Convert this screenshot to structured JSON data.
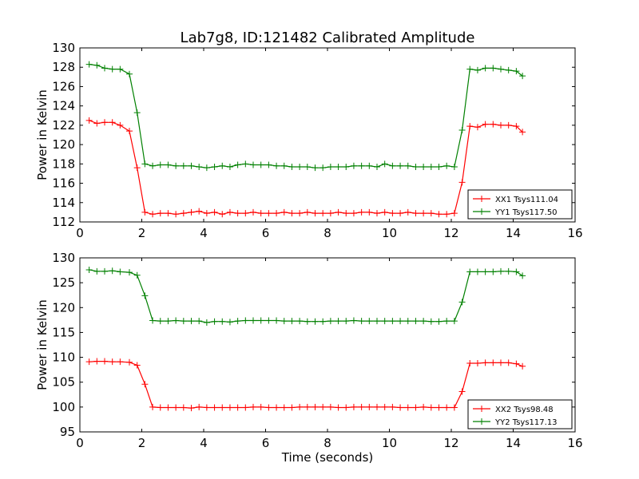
{
  "figure": {
    "title": "Lab7g8, ID:121482 Calibrated Amplitude"
  },
  "chart_data": [
    {
      "type": "line",
      "title": "Lab7g8, ID:121482 Calibrated Amplitude",
      "xlabel": "",
      "ylabel": "Power in Kelvin",
      "xlim": [
        0,
        16
      ],
      "ylim": [
        112,
        130
      ],
      "xticks": [
        "0",
        "2",
        "4",
        "6",
        "8",
        "10",
        "12",
        "14",
        "16"
      ],
      "yticks": [
        "112",
        "114",
        "116",
        "118",
        "120",
        "122",
        "124",
        "126",
        "128",
        "130"
      ],
      "grid": false,
      "legend_position": "lower-right",
      "x": [
        0.3,
        0.55,
        0.8,
        1.05,
        1.3,
        1.6,
        1.85,
        2.1,
        2.35,
        2.6,
        2.85,
        3.1,
        3.35,
        3.6,
        3.85,
        4.1,
        4.35,
        4.6,
        4.85,
        5.1,
        5.35,
        5.6,
        5.85,
        6.1,
        6.35,
        6.6,
        6.85,
        7.1,
        7.35,
        7.6,
        7.85,
        8.1,
        8.35,
        8.6,
        8.85,
        9.1,
        9.35,
        9.6,
        9.85,
        10.1,
        10.35,
        10.6,
        10.85,
        11.1,
        11.35,
        11.6,
        11.85,
        12.1,
        12.35,
        12.6,
        12.85,
        13.1,
        13.35,
        13.6,
        13.85,
        14.1,
        14.3
      ],
      "series": [
        {
          "name": "XX1 Tsys111.04",
          "color": "#ff0000",
          "values": [
            122.5,
            122.2,
            122.3,
            122.3,
            122.0,
            121.4,
            117.6,
            113.0,
            112.8,
            112.9,
            112.9,
            112.8,
            112.9,
            113.0,
            113.1,
            112.9,
            113.0,
            112.8,
            113.0,
            112.9,
            112.9,
            113.0,
            112.9,
            112.9,
            112.9,
            113.0,
            112.9,
            112.9,
            113.0,
            112.9,
            112.9,
            112.9,
            113.0,
            112.9,
            112.9,
            113.0,
            113.0,
            112.9,
            113.0,
            112.9,
            112.9,
            113.0,
            112.9,
            112.9,
            112.9,
            112.8,
            112.8,
            112.9,
            116.1,
            121.9,
            121.8,
            122.1,
            122.1,
            122.0,
            122.0,
            121.9,
            121.3
          ]
        },
        {
          "name": "YY1 Tsys117.50",
          "color": "#008000",
          "values": [
            128.3,
            128.2,
            127.9,
            127.8,
            127.8,
            127.3,
            123.3,
            118.0,
            117.8,
            117.9,
            117.9,
            117.8,
            117.8,
            117.8,
            117.7,
            117.6,
            117.7,
            117.8,
            117.7,
            117.9,
            118.0,
            117.9,
            117.9,
            117.9,
            117.8,
            117.8,
            117.7,
            117.7,
            117.7,
            117.6,
            117.6,
            117.7,
            117.7,
            117.7,
            117.8,
            117.8,
            117.8,
            117.7,
            118.0,
            117.8,
            117.8,
            117.8,
            117.7,
            117.7,
            117.7,
            117.7,
            117.8,
            117.7,
            121.5,
            127.8,
            127.7,
            127.9,
            127.9,
            127.8,
            127.7,
            127.6,
            127.1
          ]
        }
      ]
    },
    {
      "type": "line",
      "title": "",
      "xlabel": "Time (seconds)",
      "ylabel": "Power in Kelvin",
      "xlim": [
        0,
        16
      ],
      "ylim": [
        95,
        130
      ],
      "xticks": [
        "0",
        "2",
        "4",
        "6",
        "8",
        "10",
        "12",
        "14",
        "16"
      ],
      "yticks": [
        "95",
        "100",
        "105",
        "110",
        "115",
        "120",
        "125",
        "130"
      ],
      "grid": false,
      "legend_position": "lower-right",
      "x": [
        0.3,
        0.55,
        0.8,
        1.05,
        1.3,
        1.6,
        1.85,
        2.1,
        2.35,
        2.6,
        2.85,
        3.1,
        3.35,
        3.6,
        3.85,
        4.1,
        4.35,
        4.6,
        4.85,
        5.1,
        5.35,
        5.6,
        5.85,
        6.1,
        6.35,
        6.6,
        6.85,
        7.1,
        7.35,
        7.6,
        7.85,
        8.1,
        8.35,
        8.6,
        8.85,
        9.1,
        9.35,
        9.6,
        9.85,
        10.1,
        10.35,
        10.6,
        10.85,
        11.1,
        11.35,
        11.6,
        11.85,
        12.1,
        12.35,
        12.6,
        12.85,
        13.1,
        13.35,
        13.6,
        13.85,
        14.1,
        14.3
      ],
      "series": [
        {
          "name": "XX2 Tsys98.48",
          "color": "#ff0000",
          "values": [
            109.1,
            109.2,
            109.2,
            109.1,
            109.1,
            109.0,
            108.4,
            104.6,
            100.0,
            99.9,
            99.9,
            99.9,
            99.9,
            99.8,
            100.0,
            99.9,
            99.9,
            99.9,
            99.9,
            99.9,
            99.9,
            100.0,
            100.0,
            99.9,
            99.9,
            99.9,
            99.9,
            100.0,
            100.0,
            100.0,
            100.0,
            100.0,
            99.9,
            99.9,
            100.0,
            100.0,
            100.0,
            100.0,
            100.0,
            100.0,
            99.9,
            99.9,
            99.9,
            100.0,
            99.9,
            99.9,
            99.9,
            99.9,
            103.1,
            108.8,
            108.8,
            108.9,
            108.9,
            108.9,
            108.9,
            108.7,
            108.2
          ]
        },
        {
          "name": "YY2 Tsys117.13",
          "color": "#008000",
          "values": [
            127.6,
            127.3,
            127.3,
            127.4,
            127.2,
            127.1,
            126.5,
            122.4,
            117.4,
            117.3,
            117.3,
            117.4,
            117.3,
            117.3,
            117.3,
            117.0,
            117.2,
            117.2,
            117.1,
            117.3,
            117.4,
            117.4,
            117.4,
            117.4,
            117.4,
            117.3,
            117.3,
            117.3,
            117.2,
            117.2,
            117.2,
            117.3,
            117.3,
            117.3,
            117.4,
            117.3,
            117.3,
            117.3,
            117.3,
            117.3,
            117.3,
            117.3,
            117.3,
            117.3,
            117.2,
            117.2,
            117.3,
            117.3,
            121.1,
            127.2,
            127.2,
            127.2,
            127.2,
            127.3,
            127.3,
            127.2,
            126.4
          ]
        }
      ]
    }
  ]
}
